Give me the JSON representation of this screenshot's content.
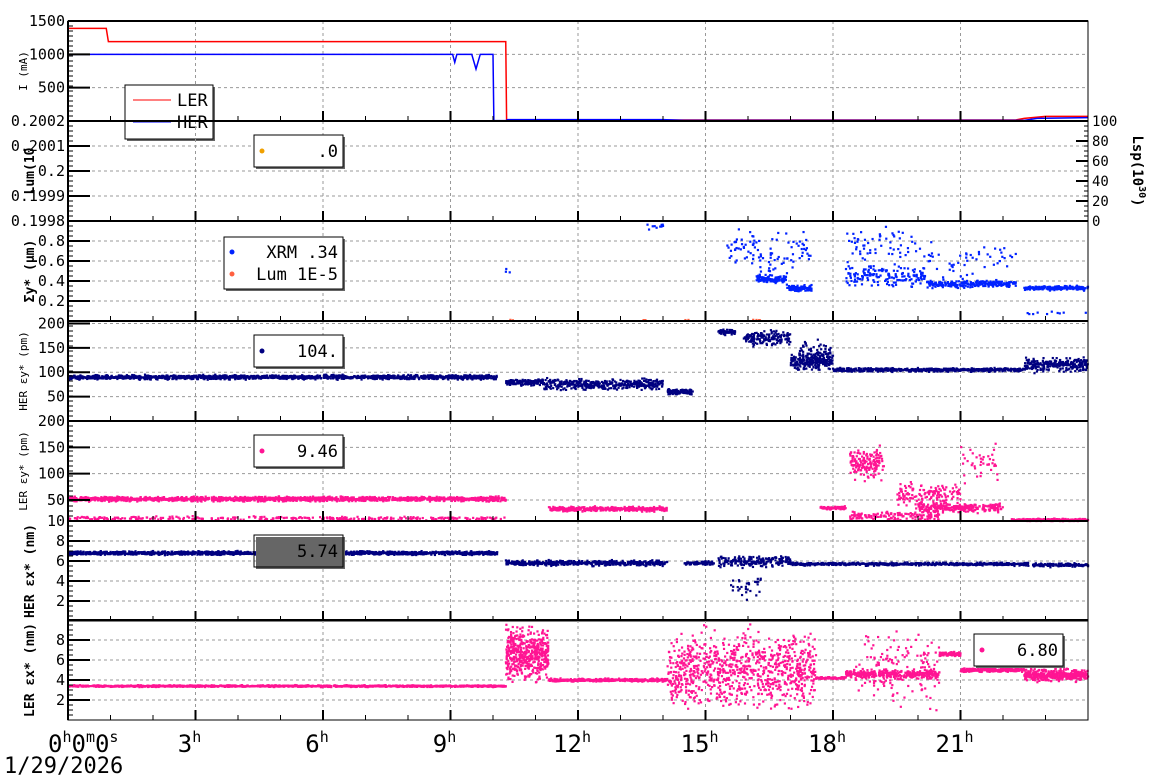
{
  "chart_data": {
    "type": "scatter",
    "title": "",
    "x_range_hours": [
      0,
      24
    ],
    "x_ticks": [
      {
        "h": 0,
        "label": "0",
        "sup": "h",
        "extra": [
          [
            "0",
            "m"
          ],
          [
            "0",
            "s"
          ]
        ]
      },
      {
        "h": 3,
        "label": "3",
        "sup": "h"
      },
      {
        "h": 6,
        "label": "6",
        "sup": "h"
      },
      {
        "h": 9,
        "label": "9",
        "sup": "h"
      },
      {
        "h": 12,
        "label": "12",
        "sup": "h"
      },
      {
        "h": 15,
        "label": "15",
        "sup": "h"
      },
      {
        "h": 18,
        "label": "18",
        "sup": "h"
      },
      {
        "h": 21,
        "label": "21",
        "sup": "h"
      }
    ],
    "date_label": "1/29/2026",
    "grid": true,
    "panels": [
      {
        "id": "current",
        "ylabel": "I (mA)",
        "ylim": [
          0,
          1500
        ],
        "yticks": [
          "500",
          "1000",
          "1500"
        ],
        "tickvals": [
          500,
          1000,
          1500
        ],
        "legend": {
          "entries": [
            {
              "name": "LER",
              "color": "#ff0000",
              "kind": "line"
            },
            {
              "name": "HER",
              "color": "#0000ff",
              "kind": "line"
            }
          ]
        },
        "series": [
          {
            "name": "LER",
            "color": "#ff0000",
            "type": "line",
            "points": [
              [
                0,
                1390
              ],
              [
                0.9,
                1390
              ],
              [
                0.95,
                1190
              ],
              [
                10.3,
                1190
              ],
              [
                10.32,
                15
              ],
              [
                22.3,
                15
              ],
              [
                22.5,
                40
              ],
              [
                23,
                70
              ],
              [
                24,
                70
              ]
            ]
          },
          {
            "name": "HER",
            "color": "#0000ff",
            "type": "line",
            "points": [
              [
                0,
                1000
              ],
              [
                9.05,
                1000
              ],
              [
                9.1,
                880
              ],
              [
                9.15,
                1000
              ],
              [
                9.5,
                1000
              ],
              [
                9.6,
                780
              ],
              [
                9.7,
                1000
              ],
              [
                10.0,
                1000
              ],
              [
                10.02,
                5
              ],
              [
                10.3,
                5
              ],
              [
                10.35,
                20
              ],
              [
                14,
                20
              ],
              [
                14.5,
                10
              ],
              [
                22.5,
                10
              ],
              [
                22.8,
                40
              ],
              [
                24,
                50
              ]
            ]
          }
        ]
      },
      {
        "id": "lum",
        "ylabel": "Lum(10",
        "ylabel_bold": true,
        "ylim": [
          0.1998,
          0.2002
        ],
        "yticks": [
          "0.1998",
          "0.1999",
          "0.2",
          "0.2001",
          "0.2002"
        ],
        "tickvals": [
          0.1998,
          0.1999,
          0.2,
          0.2001,
          0.2002
        ],
        "right_axis": {
          "label": "Lsp(10",
          "sup": "30",
          "close": ")",
          "ylim": [
            0,
            100
          ],
          "ticks": [
            "0",
            "20",
            "40",
            "60",
            "80",
            "100"
          ],
          "tickvals": [
            0,
            20,
            40,
            60,
            80,
            100
          ]
        },
        "legend": {
          "entries": [
            {
              "name": ".0",
              "color": "#f0a000",
              "kind": "dot"
            }
          ]
        },
        "series": []
      },
      {
        "id": "sigma",
        "ylabel": "Σy* (μm)",
        "ylabel_bold": true,
        "ylim": [
          0,
          1
        ],
        "yticks": [
          "0.2",
          "0.4",
          "0.6",
          "0.8"
        ],
        "tickvals": [
          0.2,
          0.4,
          0.6,
          0.8
        ],
        "legend": {
          "entries": [
            {
              "name": "XRM  .34",
              "color": "#0022ff",
              "kind": "dot"
            },
            {
              "name": "Lum 1E-5",
              "color": "#ff6040",
              "kind": "dot"
            }
          ]
        },
        "series": [
          {
            "name": "XRM",
            "color": "#0022ff",
            "type": "scatter",
            "segments": [
              [
                10.3,
                10.4,
                0.5,
                0.1,
                3
              ],
              [
                13.5,
                14.0,
                0.95,
                0.05,
                10
              ],
              [
                15.5,
                16.2,
                0.75,
                0.25,
                40
              ],
              [
                16.2,
                16.9,
                0.42,
                0.05,
                120
              ],
              [
                16.9,
                17.5,
                0.33,
                0.04,
                100
              ],
              [
                16.2,
                17.5,
                0.65,
                0.3,
                60
              ],
              [
                18.3,
                20.2,
                0.45,
                0.15,
                160
              ],
              [
                18.3,
                20.2,
                0.75,
                0.25,
                60
              ],
              [
                20.2,
                22.3,
                0.37,
                0.05,
                220
              ],
              [
                20.2,
                22.3,
                0.6,
                0.25,
                50
              ],
              [
                22.5,
                24,
                0.33,
                0.03,
                200
              ],
              [
                22.5,
                24,
                0.08,
                0.02,
                10
              ]
            ]
          },
          {
            "name": "Lum",
            "color": "#ff6040",
            "type": "scatter",
            "segments": [
              [
                10.4,
                10.5,
                0.01,
                0.005,
                2
              ],
              [
                13.5,
                13.6,
                0.01,
                0.005,
                2
              ],
              [
                14.5,
                14.6,
                0.01,
                0.005,
                2
              ],
              [
                16.1,
                16.3,
                0.01,
                0.005,
                4
              ]
            ]
          }
        ]
      },
      {
        "id": "her-ey",
        "ylabel": "HER εy* (pm)",
        "ylim": [
          0,
          205
        ],
        "yticks": [
          "50",
          "100",
          "150",
          "200"
        ],
        "tickvals": [
          50,
          100,
          150,
          200
        ],
        "legend": {
          "entries": [
            {
              "name": "104.",
              "color": "#000080",
              "kind": "dot"
            }
          ]
        },
        "series": [
          {
            "name": "HER ey",
            "color": "#000080",
            "type": "scatter",
            "segments": [
              [
                0,
                10.1,
                90,
                6,
                1500
              ],
              [
                10.3,
                11.2,
                80,
                8,
                150
              ],
              [
                11.2,
                14.0,
                75,
                15,
                400
              ],
              [
                14.1,
                14.7,
                60,
                8,
                100
              ],
              [
                15.3,
                15.7,
                183,
                8,
                60
              ],
              [
                15.9,
                17.0,
                170,
                20,
                150
              ],
              [
                17.0,
                18.0,
                120,
                20,
                200
              ],
              [
                17.2,
                18.0,
                140,
                30,
                80
              ],
              [
                18.0,
                22.5,
                105,
                5,
                600
              ],
              [
                22.5,
                24,
                115,
                20,
                250
              ]
            ]
          }
        ]
      },
      {
        "id": "ler-ey",
        "ylabel": "LER εy* (pm)",
        "ylim": [
          10,
          200
        ],
        "yticks": [
          "10",
          "50",
          "100",
          "150",
          "200"
        ],
        "tickvals": [
          10,
          50,
          100,
          150,
          200
        ],
        "legend": {
          "entries": [
            {
              "name": "9.46",
              "color": "#ff1493",
              "kind": "dot"
            }
          ]
        },
        "series": [
          {
            "name": "LER ey",
            "color": "#ff1493",
            "type": "scatter",
            "segments": [
              [
                0,
                10.3,
                52,
                6,
                1500
              ],
              [
                0,
                10.3,
                15,
                5,
                300
              ],
              [
                11.3,
                14.1,
                33,
                6,
                400
              ],
              [
                17.7,
                18.3,
                35,
                4,
                80
              ],
              [
                18.4,
                19.2,
                120,
                40,
                150
              ],
              [
                18.4,
                20.5,
                20,
                12,
                150
              ],
              [
                19.5,
                21.0,
                60,
                30,
                150
              ],
              [
                20.0,
                22.0,
                35,
                12,
                250
              ],
              [
                21.0,
                22.0,
                120,
                60,
                40
              ],
              [
                22.2,
                24,
                12,
                3,
                300
              ]
            ]
          }
        ]
      },
      {
        "id": "her-ex",
        "ylabel": "HER εx* (nm)",
        "ylabel_bold": true,
        "ylim": [
          0,
          10
        ],
        "yticks": [
          "2",
          "4",
          "6",
          "8"
        ],
        "tickvals": [
          2,
          4,
          6,
          8
        ],
        "legend": {
          "entries": [
            {
              "name": "5.74",
              "color": "#000080",
              "kind": "none"
            }
          ]
        },
        "series": [
          {
            "name": "HER ex",
            "color": "#000080",
            "type": "scatter",
            "segments": [
              [
                0,
                10.1,
                6.8,
                0.25,
                1500
              ],
              [
                10.3,
                14.1,
                5.8,
                0.35,
                500
              ],
              [
                14.5,
                15.2,
                5.8,
                0.3,
                80
              ],
              [
                15.3,
                17.0,
                6.0,
                0.8,
                200
              ],
              [
                17.0,
                22.6,
                5.7,
                0.2,
                600
              ],
              [
                22.7,
                24,
                5.6,
                0.25,
                150
              ],
              [
                15.6,
                16.3,
                3.5,
                1.5,
                30
              ]
            ]
          }
        ]
      },
      {
        "id": "ler-ex",
        "ylabel": "LER εx* (nm)",
        "ylabel_bold": true,
        "ylim": [
          0,
          10
        ],
        "yticks": [
          "2",
          "4",
          "6",
          "8"
        ],
        "tickvals": [
          2,
          4,
          6,
          8
        ],
        "legend": {
          "entries": [
            {
              "name": "6.80",
              "color": "#ff1493",
              "kind": "dot"
            }
          ]
        },
        "series": [
          {
            "name": "LER ex",
            "color": "#ff1493",
            "type": "scatter",
            "segments": [
              [
                0,
                10.3,
                3.4,
                0.12,
                1200
              ],
              [
                10.3,
                11.3,
                6.5,
                3.5,
                500
              ],
              [
                11.3,
                14.1,
                4.0,
                0.2,
                400
              ],
              [
                14.1,
                17.6,
                5,
                5,
                900
              ],
              [
                17.6,
                18.3,
                4.2,
                0.15,
                80
              ],
              [
                18.3,
                20.5,
                4.6,
                0.6,
                300
              ],
              [
                18.5,
                20.5,
                5,
                5,
                150
              ],
              [
                20.5,
                21.0,
                6.6,
                0.3,
                80
              ],
              [
                21.0,
                22.5,
                5.0,
                0.25,
                250
              ],
              [
                22.5,
                24,
                4.5,
                0.8,
                400
              ]
            ]
          }
        ]
      }
    ]
  }
}
